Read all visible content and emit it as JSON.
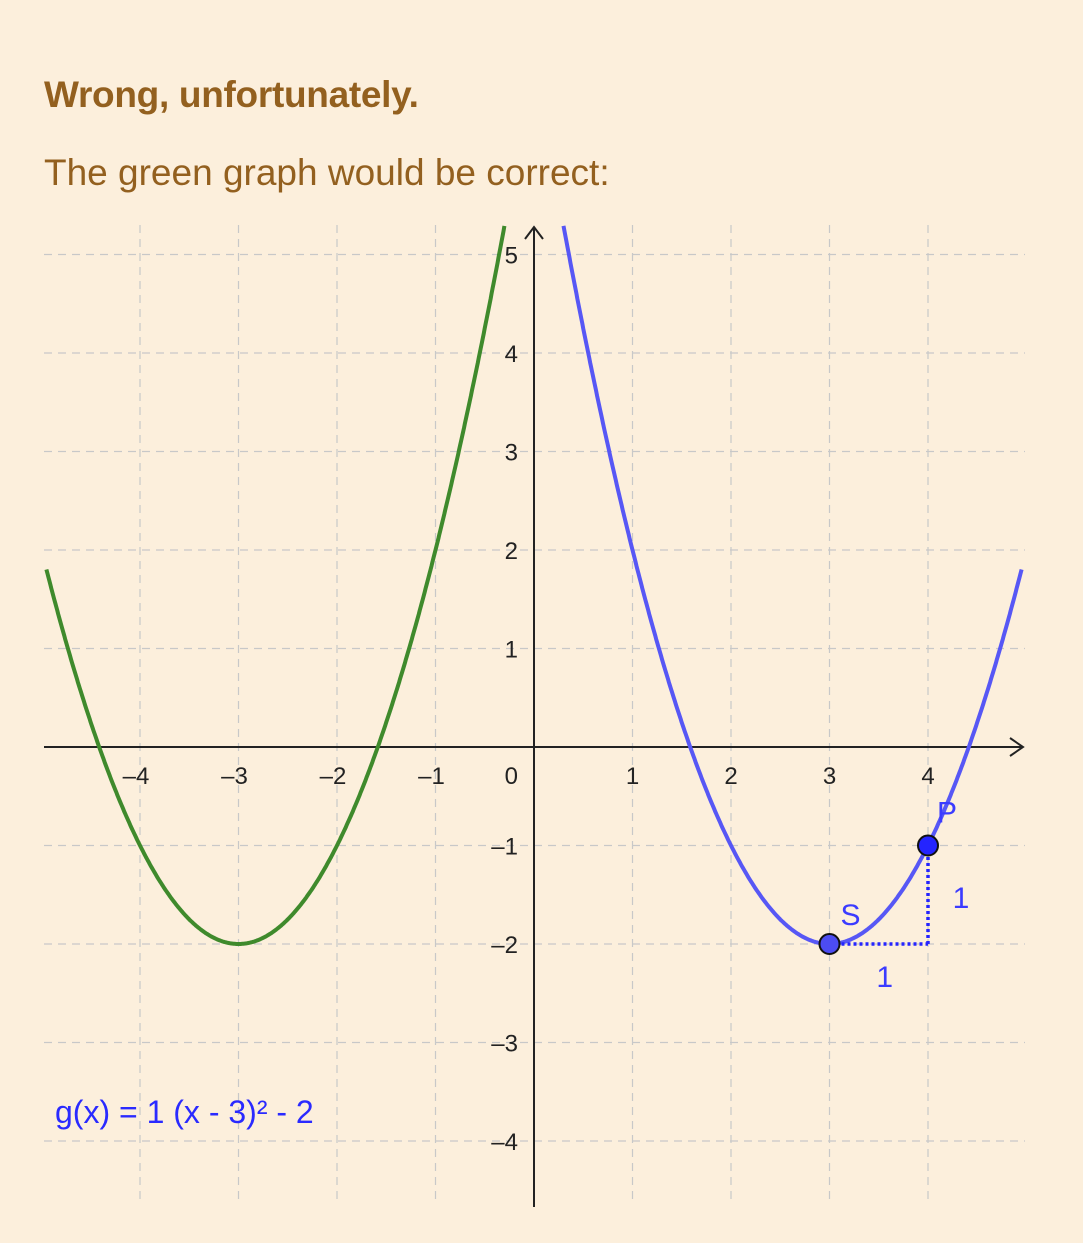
{
  "feedback": {
    "title": "Wrong, unfortunately.",
    "text": "The green graph would be correct:"
  },
  "colors": {
    "background": "#fcefdc",
    "title": "#93601f",
    "green_curve": "#3f8a2c",
    "blue_curve": "#5757f5",
    "point": "#2424ff",
    "grid": "#c8c8c8"
  },
  "chart_data": {
    "type": "line",
    "xlim": [
      -4.95,
      4.95
    ],
    "ylim": [
      -4.6,
      5.2
    ],
    "grid": true,
    "x_ticks": [
      {
        "value": -4,
        "label": "–4"
      },
      {
        "value": -3,
        "label": "–3"
      },
      {
        "value": -2,
        "label": "–2"
      },
      {
        "value": -1,
        "label": "–1"
      },
      {
        "value": 1,
        "label": "1"
      },
      {
        "value": 2,
        "label": "2"
      },
      {
        "value": 3,
        "label": "3"
      },
      {
        "value": 4,
        "label": "4"
      }
    ],
    "y_ticks": [
      {
        "value": 5,
        "label": "5"
      },
      {
        "value": 4,
        "label": "4"
      },
      {
        "value": 3,
        "label": "3"
      },
      {
        "value": 2,
        "label": "2"
      },
      {
        "value": 1,
        "label": "1"
      },
      {
        "value": -1,
        "label": "–1"
      },
      {
        "value": -2,
        "label": "–2"
      },
      {
        "value": -3,
        "label": "–3"
      },
      {
        "value": -4,
        "label": "–4"
      }
    ],
    "origin_label": "0",
    "series": [
      {
        "color": "#3f8a2c",
        "vertex": [
          -3,
          -2
        ],
        "a": 1
      },
      {
        "color": "#5757f5",
        "vertex": [
          3,
          -2
        ],
        "a": 1
      }
    ],
    "points": [
      {
        "name": "S",
        "x": 3,
        "y": -2
      },
      {
        "name": "P",
        "x": 4,
        "y": -1
      }
    ],
    "slope_triangle": {
      "run_label": "1",
      "rise_label": "1"
    },
    "formula": "g(x) = 1 (x - 3)² - 2"
  }
}
